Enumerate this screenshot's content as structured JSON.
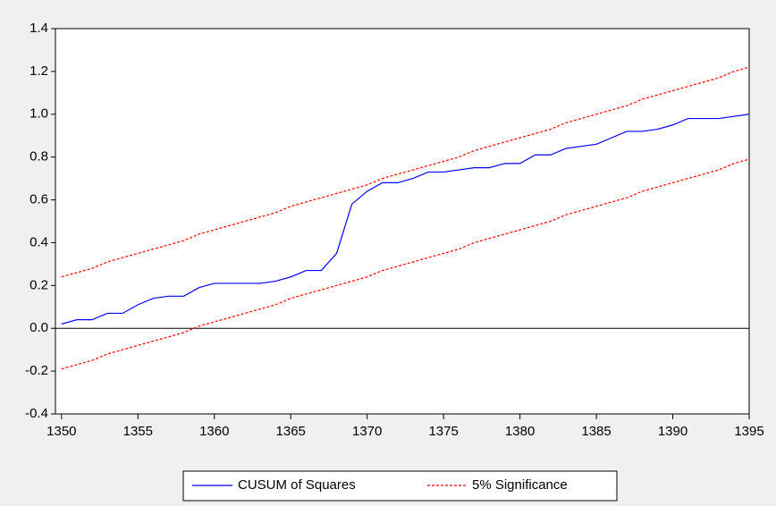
{
  "chart_data": {
    "type": "line",
    "x": [
      1350,
      1351,
      1352,
      1353,
      1354,
      1355,
      1356,
      1357,
      1358,
      1359,
      1360,
      1361,
      1362,
      1363,
      1364,
      1365,
      1366,
      1367,
      1368,
      1369,
      1370,
      1371,
      1372,
      1373,
      1374,
      1375,
      1376,
      1377,
      1378,
      1379,
      1380,
      1381,
      1382,
      1383,
      1384,
      1385,
      1386,
      1387,
      1388,
      1389,
      1390,
      1391,
      1392,
      1393,
      1394,
      1395
    ],
    "series": [
      {
        "name": "CUSUM of Squares",
        "color": "#0000ff",
        "values": [
          0.02,
          0.04,
          0.04,
          0.07,
          0.07,
          0.11,
          0.14,
          0.15,
          0.15,
          0.19,
          0.21,
          0.21,
          0.21,
          0.21,
          0.22,
          0.24,
          0.27,
          0.27,
          0.35,
          0.58,
          0.64,
          0.68,
          0.68,
          0.7,
          0.73,
          0.73,
          0.74,
          0.75,
          0.75,
          0.77,
          0.77,
          0.81,
          0.81,
          0.84,
          0.85,
          0.86,
          0.89,
          0.92,
          0.92,
          0.93,
          0.95,
          0.98,
          0.98,
          0.98,
          0.99,
          1.0
        ]
      }
    ],
    "bands": {
      "name": "5% Significance",
      "color": "#ff0000",
      "upper": [
        0.24,
        0.26,
        0.28,
        0.31,
        0.33,
        0.35,
        0.37,
        0.39,
        0.41,
        0.44,
        0.46,
        0.48,
        0.5,
        0.52,
        0.54,
        0.57,
        0.59,
        0.61,
        0.63,
        0.65,
        0.67,
        0.7,
        0.72,
        0.74,
        0.76,
        0.78,
        0.8,
        0.83,
        0.85,
        0.87,
        0.89,
        0.91,
        0.93,
        0.96,
        0.98,
        1.0,
        1.02,
        1.04,
        1.07,
        1.09,
        1.11,
        1.13,
        1.15,
        1.17,
        1.2,
        1.22
      ],
      "lower": [
        -0.19,
        -0.17,
        -0.15,
        -0.12,
        -0.1,
        -0.08,
        -0.06,
        -0.04,
        -0.02,
        0.01,
        0.03,
        0.05,
        0.07,
        0.09,
        0.11,
        0.14,
        0.16,
        0.18,
        0.2,
        0.22,
        0.24,
        0.27,
        0.29,
        0.31,
        0.33,
        0.35,
        0.37,
        0.4,
        0.42,
        0.44,
        0.46,
        0.48,
        0.5,
        0.53,
        0.55,
        0.57,
        0.59,
        0.61,
        0.64,
        0.66,
        0.68,
        0.7,
        0.72,
        0.74,
        0.77,
        0.79
      ]
    },
    "reference_line": 0,
    "xlim": [
      1349.6,
      1395
    ],
    "xticks": [
      1350,
      1355,
      1360,
      1365,
      1370,
      1375,
      1380,
      1385,
      1390,
      1395
    ],
    "ylim": [
      -0.4,
      1.4
    ],
    "yticks": [
      -0.4,
      -0.2,
      {
        "value": 0,
        "label": "0.0"
      },
      0.2,
      0.4,
      0.6,
      0.8,
      {
        "value": 1,
        "label": "1.0"
      },
      1.2,
      1.4
    ]
  }
}
